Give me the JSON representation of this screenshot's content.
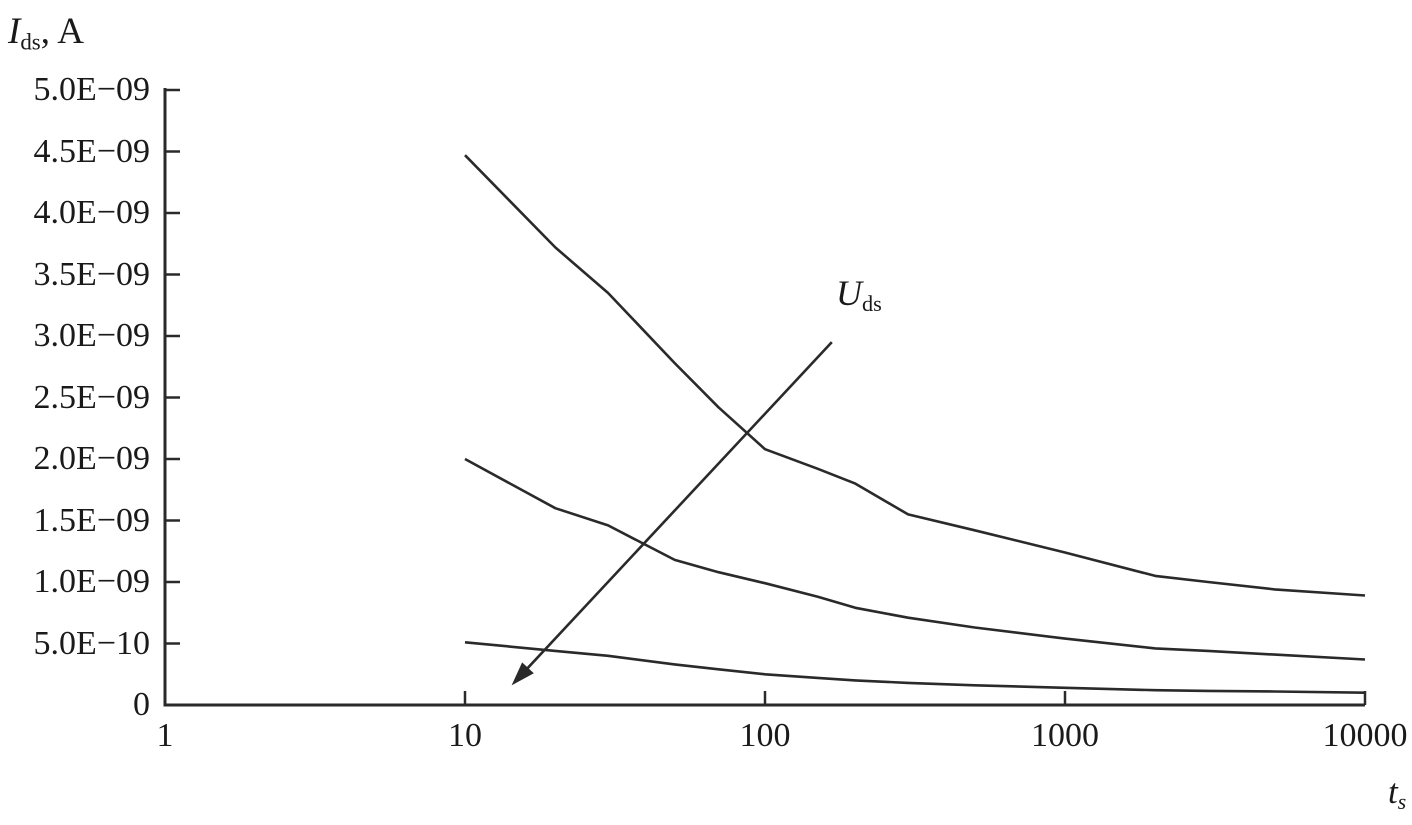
{
  "colors": {
    "background": "#ffffff",
    "line": "#2a2a2a",
    "text": "#1a1a1a"
  },
  "chart_data": {
    "type": "line",
    "x_scale": "log",
    "grid": false,
    "legend": "none",
    "title": "",
    "ylabel": {
      "symbol": "I",
      "subscript": "ds",
      "unit": ", A"
    },
    "xlabel": {
      "symbol": "t",
      "subscript": "s"
    },
    "x_range": [
      1,
      10000
    ],
    "y_range": [
      0,
      5e-09
    ],
    "x_ticks": [
      1,
      10,
      100,
      1000,
      10000
    ],
    "x_tick_labels": [
      "1",
      "10",
      "100",
      "1000",
      "10000"
    ],
    "y_ticks": [
      5e-09,
      4.5e-09,
      4e-09,
      3.5e-09,
      3e-09,
      2.5e-09,
      2e-09,
      1.5e-09,
      1e-09,
      5e-10,
      0
    ],
    "y_tick_labels": [
      "5.0E−09",
      "4.5E−09",
      "4.0E−09",
      "3.5E−09",
      "3.0E−09",
      "2.5E−09",
      "2.0E−09",
      "1.5E−09",
      "1.0E−09",
      "5.0E−10",
      "0"
    ],
    "x": [
      10,
      20,
      30,
      50,
      70,
      100,
      150,
      200,
      300,
      500,
      1000,
      2000,
      3000,
      5000,
      10000
    ],
    "series": [
      {
        "name": "upper-curve",
        "values": [
          4.47e-09,
          3.72e-09,
          3.35e-09,
          2.78e-09,
          2.42e-09,
          2.08e-09,
          1.92e-09,
          1.8e-09,
          1.55e-09,
          1.42e-09,
          1.24e-09,
          1.05e-09,
          1e-09,
          9.4e-10,
          8.9e-10
        ]
      },
      {
        "name": "middle-curve",
        "values": [
          2e-09,
          1.6e-09,
          1.46e-09,
          1.18e-09,
          1.08e-09,
          9.9e-10,
          8.8e-10,
          7.9e-10,
          7.1e-10,
          6.3e-10,
          5.4e-10,
          4.6e-10,
          4.4e-10,
          4.1e-10,
          3.7e-10
        ]
      },
      {
        "name": "lower-curve",
        "values": [
          5.1e-10,
          4.4e-10,
          4e-10,
          3.3e-10,
          2.9e-10,
          2.5e-10,
          2.2e-10,
          2e-10,
          1.8e-10,
          1.6e-10,
          1.4e-10,
          1.2e-10,
          1.15e-10,
          1.1e-10,
          1e-10
        ]
      }
    ],
    "annotation": {
      "label": {
        "symbol": "U",
        "subscript": "ds"
      },
      "arrow": {
        "from": {
          "t": 167,
          "i": 2.95e-09
        },
        "to": {
          "t": 14.3,
          "i": 1.6e-10
        }
      }
    }
  }
}
